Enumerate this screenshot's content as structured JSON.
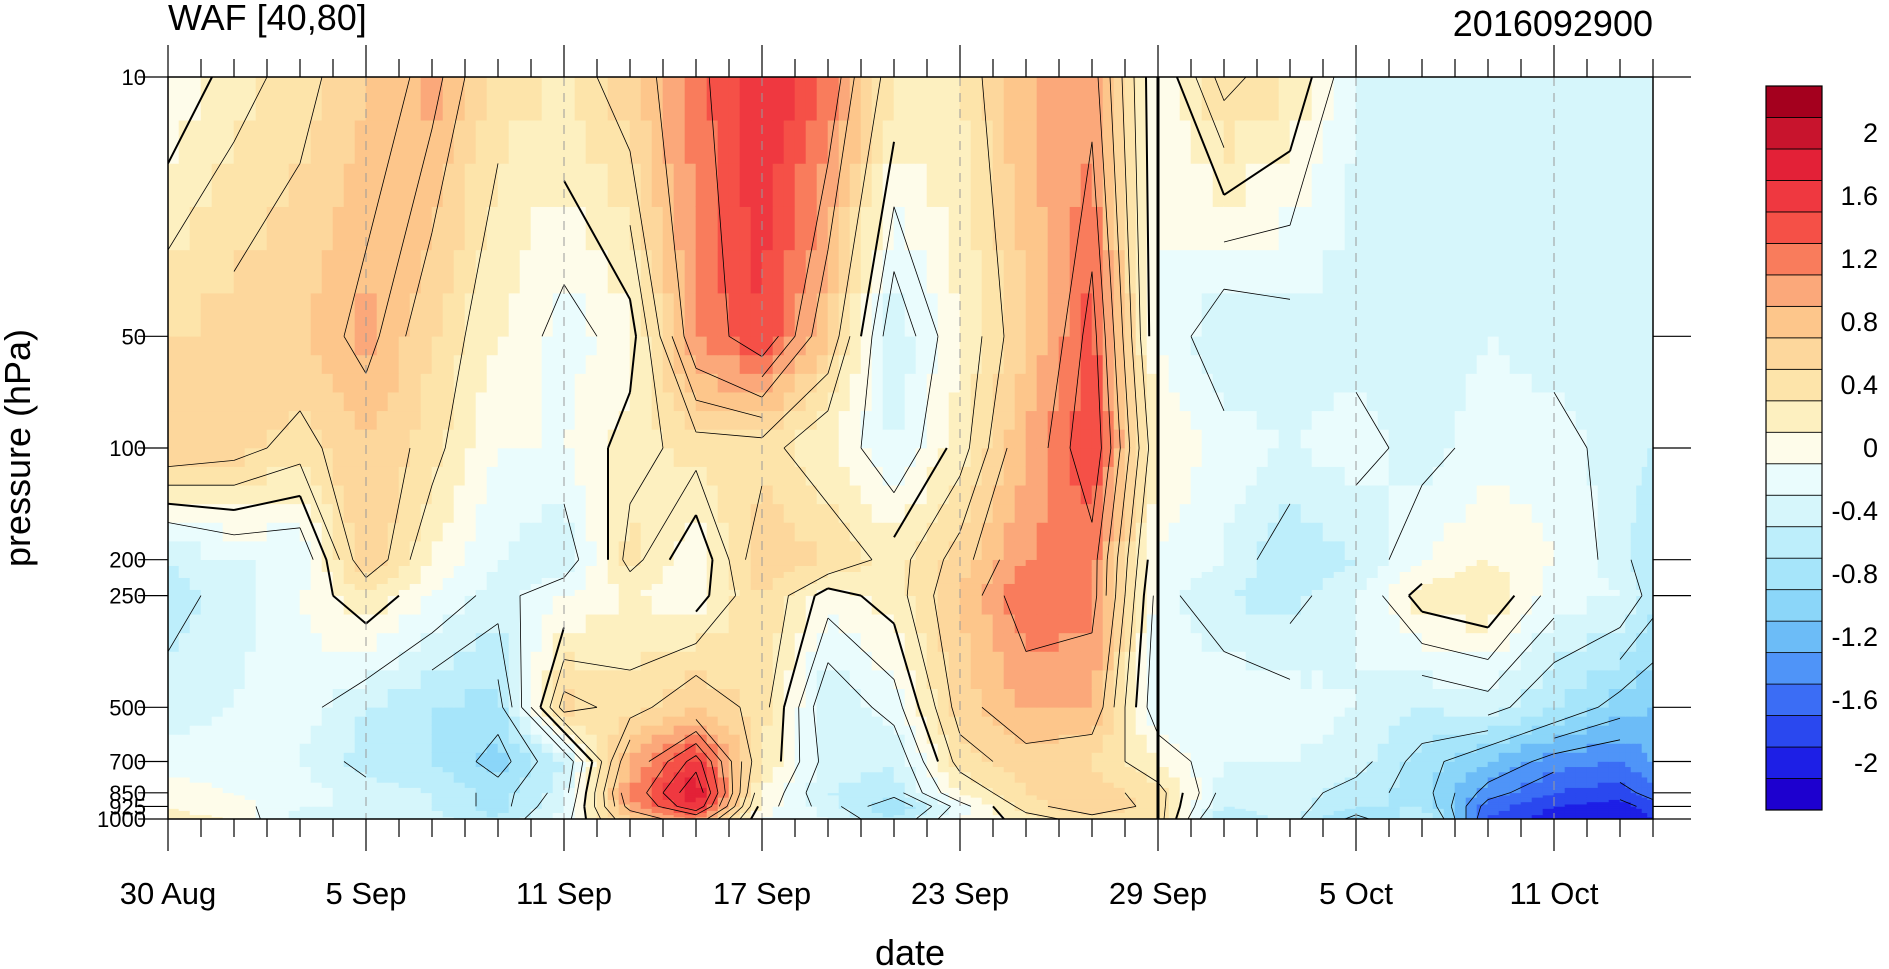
{
  "chart_data": {
    "type": "heatmap",
    "title": "WAF [40,80]",
    "right_title": "2016092900",
    "xlabel": "date",
    "ylabel": "pressure (hPa)",
    "x_tick_labels": [
      "30 Aug",
      "5 Sep",
      "11 Sep",
      "17 Sep",
      "23 Sep",
      "29 Sep",
      "5 Oct",
      "11 Oct"
    ],
    "x_tick_day_offsets": [
      0,
      6,
      12,
      18,
      24,
      30,
      36,
      42
    ],
    "x_range_days": [
      0,
      45
    ],
    "analysis_date_day_offset": 30,
    "y_scale": "log",
    "y_reversed": true,
    "y_range": [
      1000,
      10
    ],
    "pressure_levels": [
      1000,
      925,
      850,
      700,
      500,
      250,
      200,
      100,
      50,
      10
    ],
    "y_tick_labels": [
      "10",
      "50",
      "100",
      "200",
      "250",
      "500",
      "700",
      "850",
      "925",
      "1000"
    ],
    "colorbar": {
      "levels": [
        -2.2,
        -2.0,
        -1.8,
        -1.6,
        -1.4,
        -1.2,
        -1.0,
        -0.8,
        -0.6,
        -0.4,
        -0.2,
        0,
        0.2,
        0.4,
        0.6,
        0.8,
        1.0,
        1.2,
        1.4,
        1.6,
        1.8,
        2.0,
        2.2
      ],
      "labels": [
        "-2",
        "-1.6",
        "-1.2",
        "-0.8",
        "-0.4",
        "0",
        "0.4",
        "0.8",
        "1.2",
        "1.6",
        "2"
      ],
      "label_values": [
        -2,
        -1.6,
        -1.2,
        -0.8,
        -0.4,
        0,
        0.4,
        0.8,
        1.2,
        1.6,
        2
      ],
      "colors": [
        "#1d00cf",
        "#1d1fe6",
        "#2a48ef",
        "#3b6df5",
        "#4f94f8",
        "#6cbcf7",
        "#8bd6f9",
        "#a6e5fa",
        "#bdeefb",
        "#d6f6fb",
        "#eafcfd",
        "#fefcea",
        "#fdf0c0",
        "#fde4aa",
        "#fdd79c",
        "#fdc68b",
        "#fba87a",
        "#f97c5c",
        "#f55047",
        "#ef3840",
        "#e32137",
        "#c8142d",
        "#a4001e"
      ]
    },
    "grid_days": [
      0,
      2,
      4,
      6,
      8,
      10,
      12,
      14,
      16,
      18,
      20,
      22,
      24,
      26,
      28,
      30,
      32,
      34,
      36,
      38,
      40,
      42,
      44,
      45
    ],
    "values": [
      [
        0.05,
        0.0,
        -0.5,
        -0.4,
        -0.5,
        -0.8,
        -0.3,
        0.6,
        1.0,
        -0.2,
        -0.4,
        -0.8,
        -0.2,
        0.1,
        0.3,
        0.3,
        -0.8,
        -0.5,
        -1.1,
        -0.6,
        -1.8,
        -2.1,
        -2.2,
        -2.0
      ],
      [
        0.0,
        -0.1,
        -0.4,
        -0.4,
        -0.6,
        -0.9,
        -0.4,
        0.9,
        1.6,
        -0.1,
        -0.5,
        -1.0,
        -0.3,
        0.3,
        0.6,
        0.3,
        -0.6,
        -0.5,
        -0.8,
        -0.8,
        -1.7,
        -2.0,
        -2.1,
        -1.9
      ],
      [
        -0.1,
        -0.2,
        -0.3,
        -0.5,
        -0.6,
        -0.9,
        -0.5,
        1.0,
        1.8,
        0.0,
        -0.6,
        -0.7,
        0.0,
        0.4,
        0.5,
        0.3,
        -0.5,
        -0.5,
        -0.7,
        -0.9,
        -1.5,
        -1.8,
        -1.9,
        -1.7
      ],
      [
        -0.3,
        -0.3,
        -0.4,
        -0.7,
        -0.8,
        -1.1,
        -0.6,
        0.8,
        1.5,
        0.2,
        -0.5,
        -0.6,
        0.3,
        0.5,
        0.4,
        0.0,
        -0.4,
        -0.4,
        -0.5,
        -0.9,
        -1.2,
        -1.5,
        -1.6,
        -1.4
      ],
      [
        -0.5,
        -0.4,
        -0.3,
        -0.6,
        -0.8,
        -0.9,
        0.5,
        0.3,
        0.6,
        0.3,
        -0.6,
        -0.3,
        0.5,
        0.8,
        0.8,
        -0.4,
        -0.2,
        -0.3,
        -0.4,
        -0.6,
        -0.5,
        -0.8,
        -1.1,
        -1.2
      ],
      [
        -0.7,
        -0.5,
        -0.2,
        0.2,
        -0.2,
        -0.5,
        -0.2,
        0.0,
        -0.1,
        0.4,
        -0.1,
        0.1,
        0.6,
        1.2,
        1.1,
        -0.3,
        -0.6,
        -0.7,
        -0.4,
        0.1,
        0.2,
        -0.3,
        -0.4,
        -0.7
      ],
      [
        -0.6,
        -0.4,
        -0.4,
        0.6,
        0.0,
        -0.4,
        -0.6,
        0.3,
        -0.2,
        0.6,
        0.4,
        0.1,
        0.5,
        1.0,
        1.1,
        -0.2,
        -0.4,
        -0.8,
        -0.6,
        -0.2,
        0.0,
        -0.2,
        -0.5,
        -0.8
      ],
      [
        0.6,
        0.5,
        0.3,
        0.6,
        0.3,
        -0.2,
        -0.2,
        0.1,
        0.3,
        0.3,
        0.0,
        -0.4,
        0.1,
        0.8,
        1.4,
        0.0,
        -0.3,
        -0.4,
        -0.3,
        -0.5,
        -0.3,
        -0.3,
        -0.5,
        -0.6
      ],
      [
        0.4,
        0.5,
        0.6,
        0.9,
        0.4,
        0.0,
        -0.3,
        -0.1,
        1.0,
        1.4,
        0.6,
        -0.6,
        0.0,
        0.6,
        1.3,
        -0.2,
        -0.6,
        -0.5,
        -0.5,
        -0.5,
        -0.4,
        -0.5,
        -0.6,
        -0.5
      ],
      [
        -0.2,
        0.1,
        0.3,
        0.6,
        0.9,
        0.3,
        0.2,
        0.6,
        1.1,
        1.6,
        1.2,
        0.2,
        0.2,
        0.8,
        0.9,
        -0.2,
        0.5,
        0.2,
        -0.4,
        -0.5,
        -0.5,
        -0.5,
        -0.6,
        -0.4
      ]
    ]
  }
}
